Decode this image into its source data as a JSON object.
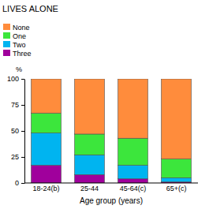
{
  "chart_data": {
    "type": "bar",
    "stacked": true,
    "title": "LIVES ALONE",
    "ylabel": "%",
    "xlabel": "Age group (years)",
    "categories": [
      "18-24(b)",
      "25-44",
      "45-64(c)",
      "65+(c)"
    ],
    "series": [
      {
        "name": "None",
        "color": "#ff8c3c",
        "values": [
          33,
          53,
          57,
          77
        ]
      },
      {
        "name": "One",
        "color": "#3ce63c",
        "values": [
          19,
          20,
          26,
          18
        ]
      },
      {
        "name": "Two",
        "color": "#00b4f0",
        "values": [
          31,
          19,
          13,
          4
        ]
      },
      {
        "name": "Three",
        "color": "#a0009c",
        "values": [
          17,
          8,
          4,
          1
        ]
      }
    ],
    "ylim": [
      0,
      100
    ],
    "yticks": [
      0,
      25,
      50,
      75,
      100
    ],
    "legend": "upper left"
  }
}
